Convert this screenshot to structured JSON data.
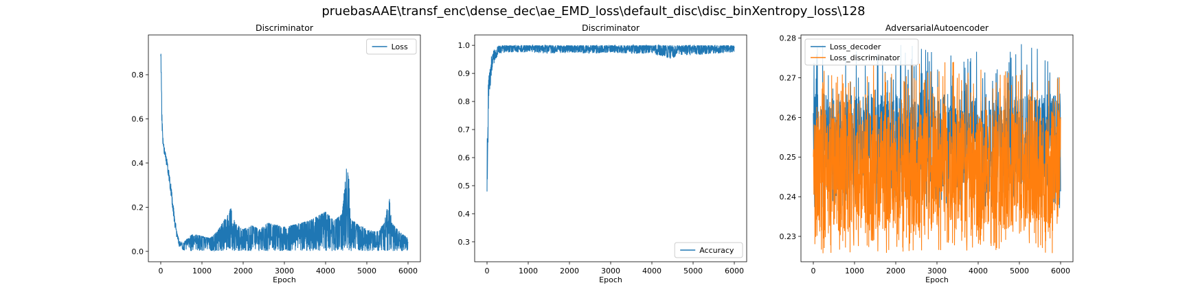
{
  "figure": {
    "suptitle": "pruebasAAE\\transf_enc\\dense_dec\\ae_EMD_loss\\default_disc\\disc_binXentropy_loss\\128"
  },
  "colors": {
    "blue": "#1f77b4",
    "orange": "#ff7f0e",
    "axes": "#000000"
  },
  "chart_data": [
    {
      "type": "line",
      "title": "Discriminator",
      "xlabel": "Epoch",
      "ylabel": "",
      "xlim": [
        -300,
        6300
      ],
      "ylim": [
        -0.047,
        0.98
      ],
      "xticks": [
        0,
        1000,
        2000,
        3000,
        4000,
        5000,
        6000
      ],
      "xtick_labels": [
        "0",
        "1000",
        "2000",
        "3000",
        "4000",
        "5000",
        "6000"
      ],
      "yticks": [
        0.0,
        0.2,
        0.4,
        0.6,
        0.8
      ],
      "ytick_labels": [
        "0.0",
        "0.2",
        "0.4",
        "0.6",
        "0.8"
      ],
      "legend_position": "upper right",
      "series": [
        {
          "name": "Loss",
          "color": "#1f77b4",
          "x": [
            0,
            10,
            30,
            60,
            100,
            150,
            200,
            250,
            300,
            350,
            400,
            450,
            500,
            550,
            600,
            700,
            800,
            1000,
            1200,
            1400,
            1600,
            1700,
            1800,
            2000,
            2200,
            2400,
            2600,
            2800,
            3000,
            3200,
            3400,
            3600,
            3800,
            4000,
            4200,
            4400,
            4500,
            4560,
            4600,
            4800,
            5000,
            5200,
            5400,
            5550,
            5600,
            5800,
            6000
          ],
          "y_low": [
            0.82,
            0.7,
            0.55,
            0.46,
            0.42,
            0.38,
            0.32,
            0.25,
            0.17,
            0.1,
            0.05,
            0.02,
            0.01,
            0.005,
            0.003,
            0.002,
            0.002,
            0.002,
            0.002,
            0.002,
            0.002,
            0.002,
            0.002,
            0.002,
            0.002,
            0.002,
            0.002,
            0.002,
            0.002,
            0.002,
            0.002,
            0.002,
            0.002,
            0.002,
            0.002,
            0.002,
            0.002,
            0.002,
            0.002,
            0.002,
            0.002,
            0.002,
            0.002,
            0.002,
            0.002,
            0.002,
            0.002
          ],
          "y_high": [
            0.93,
            0.85,
            0.62,
            0.5,
            0.46,
            0.42,
            0.36,
            0.3,
            0.22,
            0.14,
            0.08,
            0.05,
            0.04,
            0.04,
            0.05,
            0.07,
            0.08,
            0.07,
            0.06,
            0.1,
            0.16,
            0.2,
            0.13,
            0.1,
            0.12,
            0.1,
            0.13,
            0.12,
            0.11,
            0.12,
            0.13,
            0.14,
            0.16,
            0.18,
            0.14,
            0.17,
            0.38,
            0.35,
            0.15,
            0.12,
            0.1,
            0.09,
            0.12,
            0.24,
            0.13,
            0.09,
            0.06
          ]
        }
      ]
    },
    {
      "type": "line",
      "title": "Discriminator",
      "xlabel": "Epoch",
      "ylabel": "",
      "xlim": [
        -300,
        6300
      ],
      "ylim": [
        0.229,
        1.037
      ],
      "xticks": [
        0,
        1000,
        2000,
        3000,
        4000,
        5000,
        6000
      ],
      "xtick_labels": [
        "0",
        "1000",
        "2000",
        "3000",
        "4000",
        "5000",
        "6000"
      ],
      "yticks": [
        0.3,
        0.4,
        0.5,
        0.6,
        0.7,
        0.8,
        0.9,
        1.0
      ],
      "ytick_labels": [
        "0.3",
        "0.4",
        "0.5",
        "0.6",
        "0.7",
        "0.8",
        "0.9",
        "1.0"
      ],
      "legend_position": "lower right",
      "series": [
        {
          "name": "Accuracy",
          "color": "#1f77b4",
          "x": [
            0,
            10,
            30,
            60,
            100,
            150,
            200,
            300,
            500,
            1000,
            1500,
            2000,
            2500,
            3000,
            3500,
            4000,
            4400,
            4500,
            4600,
            5000,
            5500,
            6000
          ],
          "y_low": [
            0.27,
            0.55,
            0.68,
            0.8,
            0.88,
            0.92,
            0.95,
            0.97,
            0.975,
            0.975,
            0.97,
            0.975,
            0.97,
            0.975,
            0.97,
            0.97,
            0.955,
            0.95,
            0.965,
            0.965,
            0.97,
            0.975
          ],
          "y_high": [
            0.6,
            0.76,
            0.86,
            0.92,
            0.96,
            0.98,
            0.99,
            1.0,
            1.0,
            1.0,
            1.0,
            1.0,
            1.0,
            1.0,
            1.0,
            1.0,
            1.0,
            1.0,
            1.0,
            1.0,
            1.0,
            1.0
          ]
        }
      ]
    },
    {
      "type": "line",
      "title": "AdversarialAutoencoder",
      "xlabel": "Epoch",
      "ylabel": "",
      "xlim": [
        -300,
        6300
      ],
      "ylim": [
        0.2236,
        0.2808
      ],
      "xticks": [
        0,
        1000,
        2000,
        3000,
        4000,
        5000,
        6000
      ],
      "xtick_labels": [
        "0",
        "1000",
        "2000",
        "3000",
        "4000",
        "5000",
        "6000"
      ],
      "yticks": [
        0.23,
        0.24,
        0.25,
        0.26,
        0.27,
        0.28
      ],
      "ytick_labels": [
        "0.23",
        "0.24",
        "0.25",
        "0.26",
        "0.27",
        "0.28"
      ],
      "legend_position": "upper left",
      "series": [
        {
          "name": "Loss_decoder",
          "color": "#1f77b4",
          "x": [
            0,
            6000
          ],
          "y_low": [
            0.237,
            0.237
          ],
          "y_high": [
            0.2785,
            0.2785
          ],
          "y_typical_low": 0.241,
          "y_typical_high": 0.266
        },
        {
          "name": "Loss_discriminator",
          "color": "#ff7f0e",
          "x": [
            0,
            6000
          ],
          "y_low": [
            0.2255,
            0.2255
          ],
          "y_high": [
            0.274,
            0.274
          ],
          "y_typical_low": 0.231,
          "y_typical_high": 0.262
        }
      ]
    }
  ]
}
